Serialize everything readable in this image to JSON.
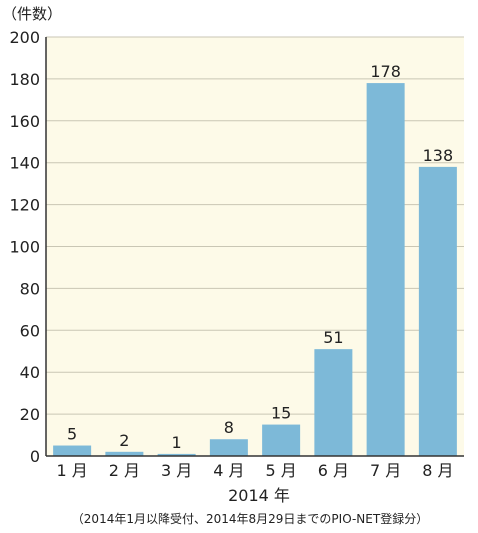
{
  "chart_data": {
    "type": "bar",
    "unit_label": "（件数）",
    "xlabel": "2014 年",
    "note": "（2014年1月以降受付、2014年8月29日までのPIO-NET登録分）",
    "categories": [
      "1 月",
      "2 月",
      "3 月",
      "4 月",
      "5 月",
      "6 月",
      "7 月",
      "8 月"
    ],
    "values": [
      5,
      2,
      1,
      8,
      15,
      51,
      178,
      138
    ],
    "data_labels": [
      "5",
      "2",
      "1",
      "8",
      "15",
      "51",
      "178",
      "138"
    ],
    "yticks": [
      "0",
      "20",
      "40",
      "60",
      "80",
      "100",
      "120",
      "140",
      "160",
      "180",
      "200"
    ],
    "ylim": [
      0,
      200
    ],
    "grid": true,
    "colors": {
      "bar": "#7db9d8",
      "plot_background": "#fdfae8",
      "grid": "#c9c6b4",
      "axis": "#333333"
    }
  }
}
